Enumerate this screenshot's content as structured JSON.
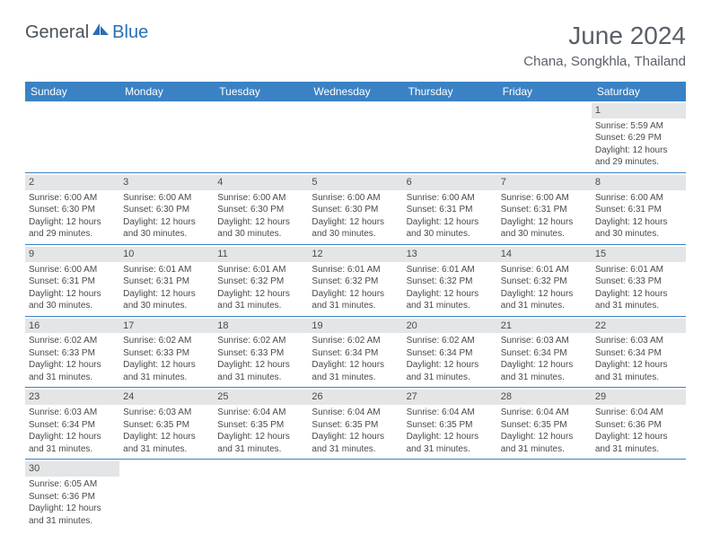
{
  "logo": {
    "part1": "General",
    "part2": "Blue"
  },
  "title": "June 2024",
  "location": "Chana, Songkhla, Thailand",
  "colors": {
    "header_bg": "#3b82c4",
    "header_text": "#ffffff",
    "daynum_bg": "#e4e5e6",
    "text": "#4a4a4a",
    "border": "#3b82c4",
    "logo_gray": "#4a5158",
    "logo_blue": "#286fb4"
  },
  "weekdays": [
    "Sunday",
    "Monday",
    "Tuesday",
    "Wednesday",
    "Thursday",
    "Friday",
    "Saturday"
  ],
  "weeks": [
    [
      null,
      null,
      null,
      null,
      null,
      null,
      {
        "n": "1",
        "sr": "Sunrise: 5:59 AM",
        "ss": "Sunset: 6:29 PM",
        "d1": "Daylight: 12 hours",
        "d2": "and 29 minutes."
      }
    ],
    [
      {
        "n": "2",
        "sr": "Sunrise: 6:00 AM",
        "ss": "Sunset: 6:30 PM",
        "d1": "Daylight: 12 hours",
        "d2": "and 29 minutes."
      },
      {
        "n": "3",
        "sr": "Sunrise: 6:00 AM",
        "ss": "Sunset: 6:30 PM",
        "d1": "Daylight: 12 hours",
        "d2": "and 30 minutes."
      },
      {
        "n": "4",
        "sr": "Sunrise: 6:00 AM",
        "ss": "Sunset: 6:30 PM",
        "d1": "Daylight: 12 hours",
        "d2": "and 30 minutes."
      },
      {
        "n": "5",
        "sr": "Sunrise: 6:00 AM",
        "ss": "Sunset: 6:30 PM",
        "d1": "Daylight: 12 hours",
        "d2": "and 30 minutes."
      },
      {
        "n": "6",
        "sr": "Sunrise: 6:00 AM",
        "ss": "Sunset: 6:31 PM",
        "d1": "Daylight: 12 hours",
        "d2": "and 30 minutes."
      },
      {
        "n": "7",
        "sr": "Sunrise: 6:00 AM",
        "ss": "Sunset: 6:31 PM",
        "d1": "Daylight: 12 hours",
        "d2": "and 30 minutes."
      },
      {
        "n": "8",
        "sr": "Sunrise: 6:00 AM",
        "ss": "Sunset: 6:31 PM",
        "d1": "Daylight: 12 hours",
        "d2": "and 30 minutes."
      }
    ],
    [
      {
        "n": "9",
        "sr": "Sunrise: 6:00 AM",
        "ss": "Sunset: 6:31 PM",
        "d1": "Daylight: 12 hours",
        "d2": "and 30 minutes."
      },
      {
        "n": "10",
        "sr": "Sunrise: 6:01 AM",
        "ss": "Sunset: 6:31 PM",
        "d1": "Daylight: 12 hours",
        "d2": "and 30 minutes."
      },
      {
        "n": "11",
        "sr": "Sunrise: 6:01 AM",
        "ss": "Sunset: 6:32 PM",
        "d1": "Daylight: 12 hours",
        "d2": "and 31 minutes."
      },
      {
        "n": "12",
        "sr": "Sunrise: 6:01 AM",
        "ss": "Sunset: 6:32 PM",
        "d1": "Daylight: 12 hours",
        "d2": "and 31 minutes."
      },
      {
        "n": "13",
        "sr": "Sunrise: 6:01 AM",
        "ss": "Sunset: 6:32 PM",
        "d1": "Daylight: 12 hours",
        "d2": "and 31 minutes."
      },
      {
        "n": "14",
        "sr": "Sunrise: 6:01 AM",
        "ss": "Sunset: 6:32 PM",
        "d1": "Daylight: 12 hours",
        "d2": "and 31 minutes."
      },
      {
        "n": "15",
        "sr": "Sunrise: 6:01 AM",
        "ss": "Sunset: 6:33 PM",
        "d1": "Daylight: 12 hours",
        "d2": "and 31 minutes."
      }
    ],
    [
      {
        "n": "16",
        "sr": "Sunrise: 6:02 AM",
        "ss": "Sunset: 6:33 PM",
        "d1": "Daylight: 12 hours",
        "d2": "and 31 minutes."
      },
      {
        "n": "17",
        "sr": "Sunrise: 6:02 AM",
        "ss": "Sunset: 6:33 PM",
        "d1": "Daylight: 12 hours",
        "d2": "and 31 minutes."
      },
      {
        "n": "18",
        "sr": "Sunrise: 6:02 AM",
        "ss": "Sunset: 6:33 PM",
        "d1": "Daylight: 12 hours",
        "d2": "and 31 minutes."
      },
      {
        "n": "19",
        "sr": "Sunrise: 6:02 AM",
        "ss": "Sunset: 6:34 PM",
        "d1": "Daylight: 12 hours",
        "d2": "and 31 minutes."
      },
      {
        "n": "20",
        "sr": "Sunrise: 6:02 AM",
        "ss": "Sunset: 6:34 PM",
        "d1": "Daylight: 12 hours",
        "d2": "and 31 minutes."
      },
      {
        "n": "21",
        "sr": "Sunrise: 6:03 AM",
        "ss": "Sunset: 6:34 PM",
        "d1": "Daylight: 12 hours",
        "d2": "and 31 minutes."
      },
      {
        "n": "22",
        "sr": "Sunrise: 6:03 AM",
        "ss": "Sunset: 6:34 PM",
        "d1": "Daylight: 12 hours",
        "d2": "and 31 minutes."
      }
    ],
    [
      {
        "n": "23",
        "sr": "Sunrise: 6:03 AM",
        "ss": "Sunset: 6:34 PM",
        "d1": "Daylight: 12 hours",
        "d2": "and 31 minutes."
      },
      {
        "n": "24",
        "sr": "Sunrise: 6:03 AM",
        "ss": "Sunset: 6:35 PM",
        "d1": "Daylight: 12 hours",
        "d2": "and 31 minutes."
      },
      {
        "n": "25",
        "sr": "Sunrise: 6:04 AM",
        "ss": "Sunset: 6:35 PM",
        "d1": "Daylight: 12 hours",
        "d2": "and 31 minutes."
      },
      {
        "n": "26",
        "sr": "Sunrise: 6:04 AM",
        "ss": "Sunset: 6:35 PM",
        "d1": "Daylight: 12 hours",
        "d2": "and 31 minutes."
      },
      {
        "n": "27",
        "sr": "Sunrise: 6:04 AM",
        "ss": "Sunset: 6:35 PM",
        "d1": "Daylight: 12 hours",
        "d2": "and 31 minutes."
      },
      {
        "n": "28",
        "sr": "Sunrise: 6:04 AM",
        "ss": "Sunset: 6:35 PM",
        "d1": "Daylight: 12 hours",
        "d2": "and 31 minutes."
      },
      {
        "n": "29",
        "sr": "Sunrise: 6:04 AM",
        "ss": "Sunset: 6:36 PM",
        "d1": "Daylight: 12 hours",
        "d2": "and 31 minutes."
      }
    ],
    [
      {
        "n": "30",
        "sr": "Sunrise: 6:05 AM",
        "ss": "Sunset: 6:36 PM",
        "d1": "Daylight: 12 hours",
        "d2": "and 31 minutes."
      },
      null,
      null,
      null,
      null,
      null,
      null
    ]
  ]
}
